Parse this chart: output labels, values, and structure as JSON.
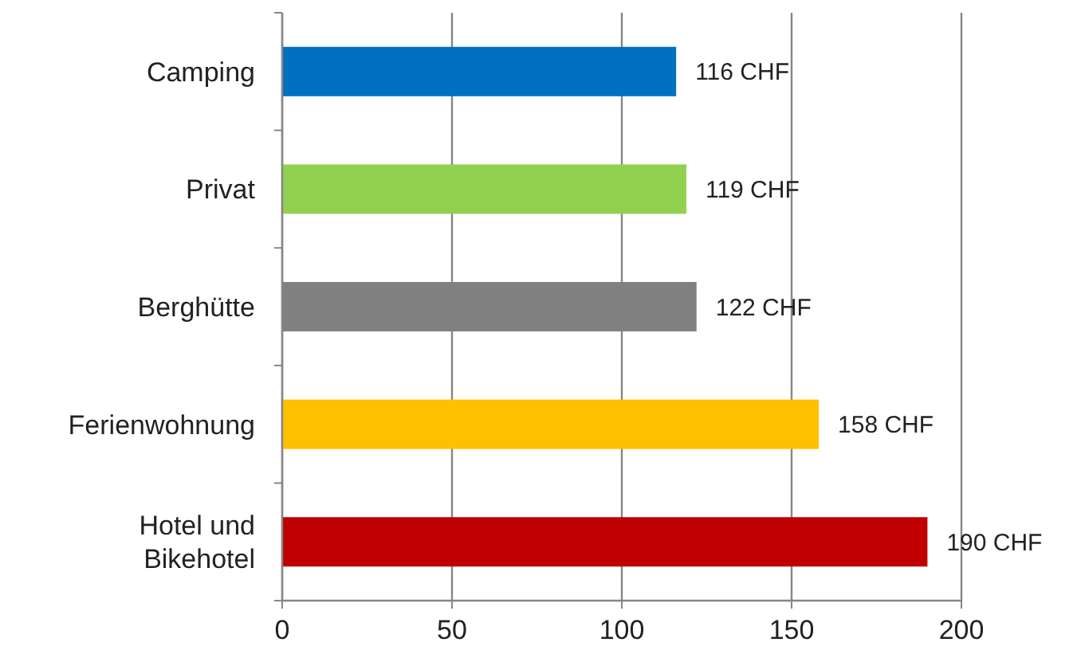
{
  "chart_data": {
    "type": "bar",
    "orientation": "horizontal",
    "categories": [
      "Camping",
      "Privat",
      "Berghütte",
      "Ferienwohnung",
      "Hotel und Bikehotel"
    ],
    "values": [
      116,
      119,
      122,
      158,
      190
    ],
    "colors": [
      "#0070c0",
      "#92d050",
      "#808080",
      "#ffc000",
      "#c00000"
    ],
    "value_labels": [
      "116 CHF",
      "119 CHF",
      "122 CHF",
      "158 CHF",
      "190 CHF"
    ],
    "xlim": [
      0,
      200
    ],
    "xticks": [
      0,
      50,
      100,
      150,
      200
    ],
    "grid": "x"
  }
}
